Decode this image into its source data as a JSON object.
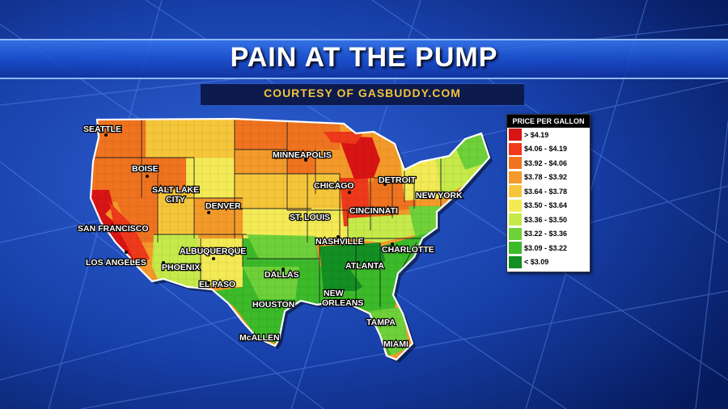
{
  "title": "PAIN AT THE PUMP",
  "subtitle": "COURTESY OF GASBUDDY.COM",
  "legend": {
    "title": "PRICE PER GALLON",
    "items": [
      {
        "label": "> $4.19",
        "color": "#d91414"
      },
      {
        "label": "$4.06 - $4.19",
        "color": "#ee3a1a"
      },
      {
        "label": "$3.92 - $4.06",
        "color": "#f0731f"
      },
      {
        "label": "$3.78 - $3.92",
        "color": "#f49a2a"
      },
      {
        "label": "$3.64 - $3.78",
        "color": "#f6c63a"
      },
      {
        "label": "$3.50 - $3.64",
        "color": "#f4ea55"
      },
      {
        "label": "$3.36 - $3.50",
        "color": "#c6ea4a"
      },
      {
        "label": "$3.22 - $3.36",
        "color": "#6fd13a"
      },
      {
        "label": "$3.09 - $3.22",
        "color": "#3cba2a"
      },
      {
        "label": "< $3.09",
        "color": "#138f23"
      }
    ]
  },
  "cities": {
    "seattle": "SEATTLE",
    "boise": "BOISE",
    "salt_lake_city_1": "SALT LAKE",
    "salt_lake_city_2": "CITY",
    "denver": "DENVER",
    "minneapolis": "MINNEAPOLIS",
    "chicago": "CHICAGO",
    "detroit": "DETROIT",
    "new_york": "NEW YORK",
    "st_louis": "ST. LOUIS",
    "cincinnati": "CINCINNATI",
    "san_francisco": "SAN FRANCISCO",
    "los_angeles": "LOS ANGELES",
    "phoenix": "PHOENIX",
    "albuquerque": "ALBUQUERQUE",
    "el_paso": "EL PASO",
    "nashville": "NASHVILLE",
    "charlotte": "CHARLOTTE",
    "atlanta": "ATLANTA",
    "dallas": "DALLAS",
    "houston": "HOUSTON",
    "new_orleans_1": "NEW",
    "new_orleans_2": "ORLEANS",
    "tampa": "TAMPA",
    "miami": "MIAMI",
    "mcallen": "McALLEN"
  }
}
